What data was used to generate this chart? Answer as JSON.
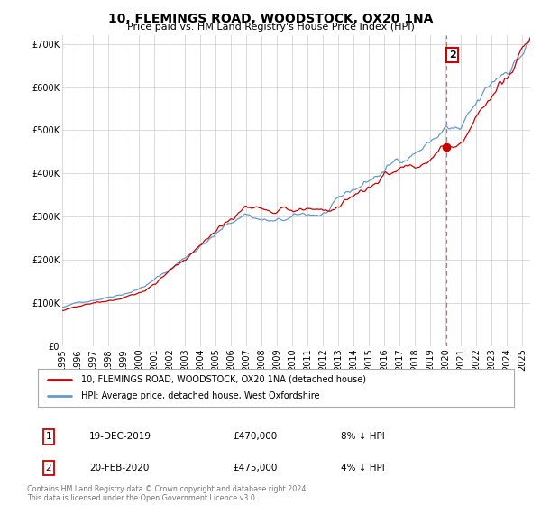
{
  "title": "10, FLEMINGS ROAD, WOODSTOCK, OX20 1NA",
  "subtitle": "Price paid vs. HM Land Registry's House Price Index (HPI)",
  "legend_label_red": "10, FLEMINGS ROAD, WOODSTOCK, OX20 1NA (detached house)",
  "legend_label_blue": "HPI: Average price, detached house, West Oxfordshire",
  "footer": "Contains HM Land Registry data © Crown copyright and database right 2024.\nThis data is licensed under the Open Government Licence v3.0.",
  "transactions": [
    {
      "id": 1,
      "date": "19-DEC-2019",
      "price": 470000,
      "pct": "8%",
      "dir": "↓"
    },
    {
      "id": 2,
      "date": "20-FEB-2020",
      "price": 475000,
      "pct": "4%",
      "dir": "↓"
    }
  ],
  "red_color": "#cc0000",
  "blue_color": "#6699cc",
  "background_color": "#ffffff",
  "ylim": [
    0,
    720000
  ],
  "yticks": [
    0,
    100000,
    200000,
    300000,
    400000,
    500000,
    600000,
    700000
  ],
  "t1_year": 2019.97,
  "t2_year": 2020.13,
  "marker_year": 2020.05,
  "xstart": 1995.0,
  "xend": 2025.5
}
